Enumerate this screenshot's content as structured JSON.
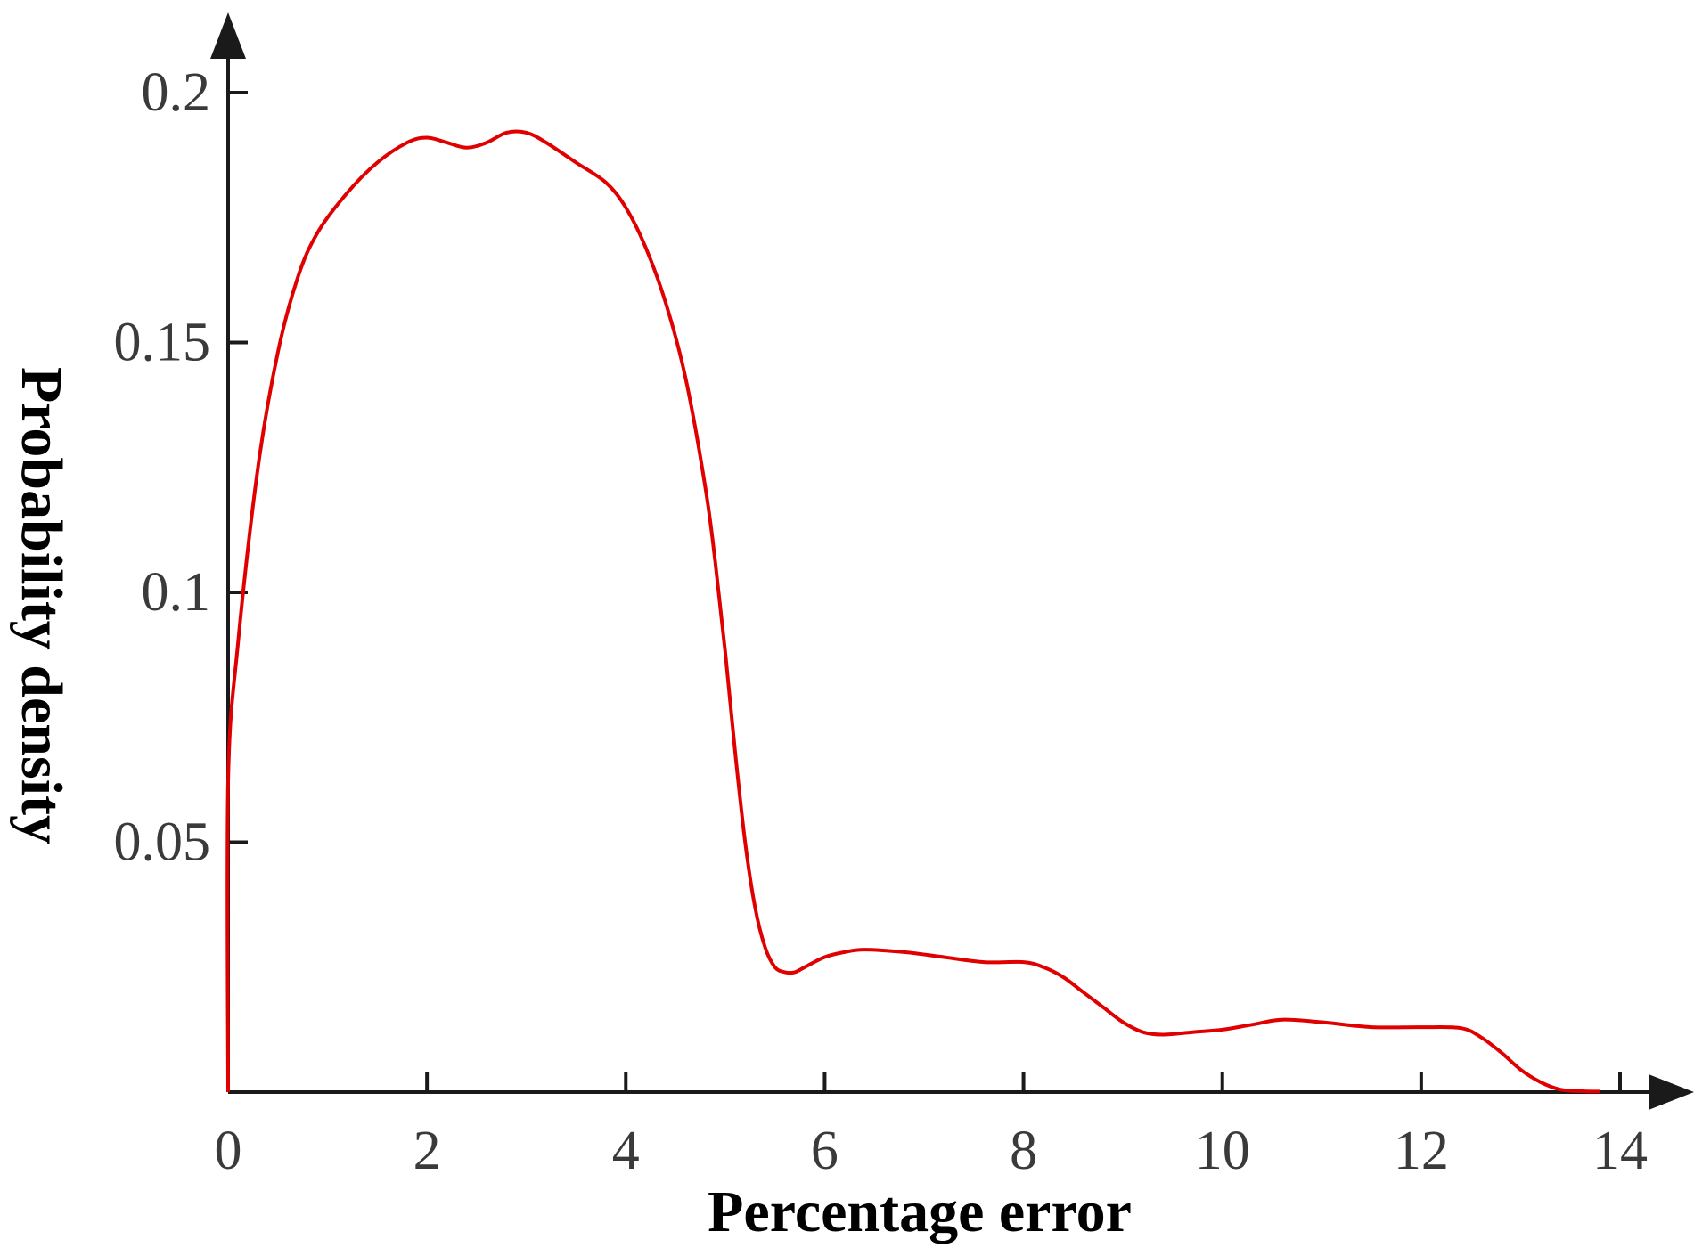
{
  "chart_data": {
    "type": "line",
    "title": "",
    "xlabel": "Percentage error",
    "ylabel": "Probability density",
    "xlim": [
      0,
      14
    ],
    "ylim": [
      0,
      0.2
    ],
    "x_ticks": [
      0,
      2,
      4,
      6,
      8,
      10,
      12,
      14
    ],
    "x_tick_labels": [
      "0",
      "2",
      "4",
      "6",
      "8",
      "10",
      "12",
      "14"
    ],
    "y_ticks": [
      0.05,
      0.1,
      0.15,
      0.2
    ],
    "y_tick_labels": [
      "0.05",
      "0.1",
      "0.15",
      "0.2"
    ],
    "grid": false,
    "legend": "none",
    "axis_arrows": true,
    "colors": {
      "line": "#e00000",
      "axis": "#1a1a1a",
      "tick_text": "#3a3a3a"
    },
    "series": [
      {
        "x": [
          0,
          0,
          0.1,
          0.3,
          0.5,
          0.7,
          0.9,
          1.2,
          1.5,
          1.8,
          2.0,
          2.2,
          2.4,
          2.6,
          2.8,
          3.0,
          3.2,
          3.5,
          3.8,
          4.0,
          4.2,
          4.4,
          4.6,
          4.8,
          4.9,
          5.0,
          5.1,
          5.2,
          5.3,
          5.4,
          5.5,
          5.6,
          5.7,
          5.8,
          6.0,
          6.2,
          6.4,
          6.8,
          7.2,
          7.6,
          8.0,
          8.2,
          8.4,
          8.6,
          8.8,
          9.0,
          9.2,
          9.4,
          9.7,
          10.0,
          10.3,
          10.6,
          11.0,
          11.5,
          12.0,
          12.4,
          12.6,
          12.8,
          13.0,
          13.2,
          13.4,
          13.6,
          13.8
        ],
        "y": [
          0,
          0.062,
          0.09,
          0.125,
          0.148,
          0.163,
          0.172,
          0.18,
          0.186,
          0.19,
          0.191,
          0.19,
          0.189,
          0.19,
          0.192,
          0.192,
          0.19,
          0.186,
          0.182,
          0.177,
          0.169,
          0.158,
          0.143,
          0.121,
          0.106,
          0.088,
          0.068,
          0.05,
          0.037,
          0.029,
          0.025,
          0.024,
          0.024,
          0.025,
          0.027,
          0.028,
          0.0285,
          0.028,
          0.027,
          0.026,
          0.026,
          0.025,
          0.023,
          0.02,
          0.017,
          0.014,
          0.012,
          0.0115,
          0.012,
          0.0125,
          0.0135,
          0.0145,
          0.014,
          0.013,
          0.013,
          0.0128,
          0.011,
          0.008,
          0.0045,
          0.002,
          0.0005,
          0.0002,
          0.0001
        ]
      }
    ]
  }
}
